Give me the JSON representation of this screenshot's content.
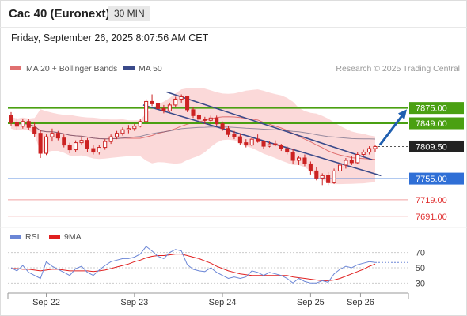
{
  "header": {
    "title": "Cac 40 (Euronext)",
    "timeframe": "30 MIN",
    "datetime": "Friday, September 26, 2025 8:07:56 AM CET"
  },
  "legend": {
    "ma20": "MA 20 + Bollinger Bands",
    "ma50": "MA 50",
    "credit": "Research © 2025 Trading Central",
    "rsi": "RSI",
    "rsi_ma": "9MA"
  },
  "colors": {
    "candle": "#cc2222",
    "ma20": "#e07070",
    "bollinger_fill": "#fbd9d9",
    "ma50": "#555577",
    "channel": "#3a4a8a",
    "green_level": "#4aa012",
    "support_level": "#2f6fd6",
    "lower_level": "#e03030",
    "rsi": "#6b86d6",
    "rsi_ma": "#e02020",
    "arrow": "#1f5fb0"
  },
  "chart_data": [
    {
      "type": "candlestick",
      "title": "Cac 40 (Euronext)",
      "timeframe": "30 MIN",
      "x_ticks": [
        "Sep 22",
        "Sep 23",
        "Sep 24",
        "Sep 25",
        "Sep 26"
      ],
      "ylim": [
        7680,
        7900
      ],
      "levels": [
        {
          "value": 7875.0,
          "label": "7875.00",
          "style": "resistance"
        },
        {
          "value": 7849.0,
          "label": "7849.00",
          "style": "resistance"
        },
        {
          "value": 7809.5,
          "label": "7809.50",
          "style": "last"
        },
        {
          "value": 7755.0,
          "label": "7755.00",
          "style": "pivot"
        },
        {
          "value": 7719.0,
          "label": "7719.00",
          "style": "support"
        },
        {
          "value": 7691.0,
          "label": "7691.00",
          "style": "support"
        }
      ],
      "ohlc": [
        [
          7862,
          7868,
          7844,
          7850
        ],
        [
          7850,
          7858,
          7838,
          7844
        ],
        [
          7844,
          7856,
          7840,
          7852
        ],
        [
          7852,
          7856,
          7838,
          7842
        ],
        [
          7842,
          7850,
          7826,
          7832
        ],
        [
          7832,
          7838,
          7790,
          7798
        ],
        [
          7798,
          7830,
          7795,
          7826
        ],
        [
          7826,
          7840,
          7818,
          7832
        ],
        [
          7832,
          7836,
          7820,
          7824
        ],
        [
          7824,
          7830,
          7808,
          7812
        ],
        [
          7812,
          7816,
          7798,
          7804
        ],
        [
          7804,
          7820,
          7800,
          7816
        ],
        [
          7816,
          7826,
          7812,
          7820
        ],
        [
          7820,
          7824,
          7800,
          7806
        ],
        [
          7806,
          7812,
          7796,
          7800
        ],
        [
          7800,
          7812,
          7796,
          7808
        ],
        [
          7808,
          7822,
          7804,
          7818
        ],
        [
          7818,
          7830,
          7814,
          7826
        ],
        [
          7826,
          7836,
          7822,
          7832
        ],
        [
          7832,
          7842,
          7828,
          7838
        ],
        [
          7838,
          7846,
          7832,
          7840
        ],
        [
          7840,
          7848,
          7836,
          7844
        ],
        [
          7844,
          7856,
          7842,
          7852
        ],
        [
          7852,
          7890,
          7850,
          7886
        ],
        [
          7886,
          7898,
          7878,
          7882
        ],
        [
          7882,
          7888,
          7870,
          7874
        ],
        [
          7874,
          7880,
          7866,
          7870
        ],
        [
          7870,
          7884,
          7868,
          7880
        ],
        [
          7880,
          7894,
          7876,
          7890
        ],
        [
          7890,
          7898,
          7884,
          7894
        ],
        [
          7894,
          7896,
          7868,
          7872
        ],
        [
          7872,
          7876,
          7858,
          7862
        ],
        [
          7862,
          7866,
          7852,
          7856
        ],
        [
          7856,
          7860,
          7848,
          7854
        ],
        [
          7854,
          7862,
          7850,
          7858
        ],
        [
          7858,
          7862,
          7844,
          7848
        ],
        [
          7848,
          7852,
          7836,
          7840
        ],
        [
          7840,
          7844,
          7826,
          7830
        ],
        [
          7830,
          7836,
          7822,
          7826
        ],
        [
          7826,
          7832,
          7812,
          7816
        ],
        [
          7816,
          7822,
          7808,
          7812
        ],
        [
          7812,
          7826,
          7810,
          7822
        ],
        [
          7822,
          7830,
          7816,
          7818
        ],
        [
          7818,
          7820,
          7806,
          7810
        ],
        [
          7810,
          7818,
          7808,
          7814
        ],
        [
          7814,
          7820,
          7810,
          7812
        ],
        [
          7812,
          7814,
          7802,
          7806
        ],
        [
          7806,
          7810,
          7796,
          7800
        ],
        [
          7800,
          7806,
          7780,
          7786
        ],
        [
          7786,
          7794,
          7778,
          7790
        ],
        [
          7790,
          7796,
          7776,
          7780
        ],
        [
          7780,
          7784,
          7762,
          7768
        ],
        [
          7768,
          7774,
          7752,
          7756
        ],
        [
          7756,
          7764,
          7744,
          7760
        ],
        [
          7760,
          7766,
          7744,
          7748
        ],
        [
          7748,
          7772,
          7746,
          7768
        ],
        [
          7768,
          7782,
          7764,
          7778
        ],
        [
          7778,
          7790,
          7772,
          7786
        ],
        [
          7786,
          7794,
          7778,
          7782
        ],
        [
          7782,
          7800,
          7780,
          7796
        ],
        [
          7796,
          7804,
          7792,
          7800
        ],
        [
          7800,
          7810,
          7796,
          7806
        ],
        [
          7806,
          7812,
          7800,
          7809.5
        ]
      ]
    },
    {
      "type": "line",
      "title": "RSI",
      "ylim": [
        20,
        80
      ],
      "y_ticks": [
        70,
        50,
        30
      ],
      "series": [
        {
          "name": "RSI",
          "values": [
            50,
            46,
            53,
            44,
            40,
            36,
            58,
            52,
            48,
            44,
            40,
            49,
            52,
            44,
            40,
            47,
            53,
            58,
            60,
            62,
            62,
            64,
            68,
            78,
            72,
            65,
            62,
            70,
            74,
            72,
            54,
            48,
            46,
            45,
            50,
            44,
            40,
            36,
            38,
            36,
            38,
            46,
            44,
            40,
            44,
            42,
            40,
            36,
            30,
            36,
            32,
            30,
            30,
            33,
            31,
            42,
            48,
            52,
            50,
            54,
            56,
            58,
            57
          ]
        },
        {
          "name": "9MA",
          "values": [
            49,
            49,
            48,
            48,
            47,
            46,
            47,
            48,
            48,
            47,
            46,
            46,
            46,
            46,
            45,
            46,
            47,
            49,
            51,
            53,
            55,
            58,
            60,
            63,
            65,
            66,
            66,
            67,
            68,
            68,
            66,
            64,
            62,
            59,
            56,
            52,
            49,
            46,
            44,
            42,
            41,
            40,
            40,
            40,
            40,
            40,
            40,
            40,
            38,
            37,
            36,
            35,
            34,
            33,
            33,
            34,
            36,
            39,
            42,
            45,
            48,
            52,
            55
          ]
        }
      ]
    }
  ]
}
